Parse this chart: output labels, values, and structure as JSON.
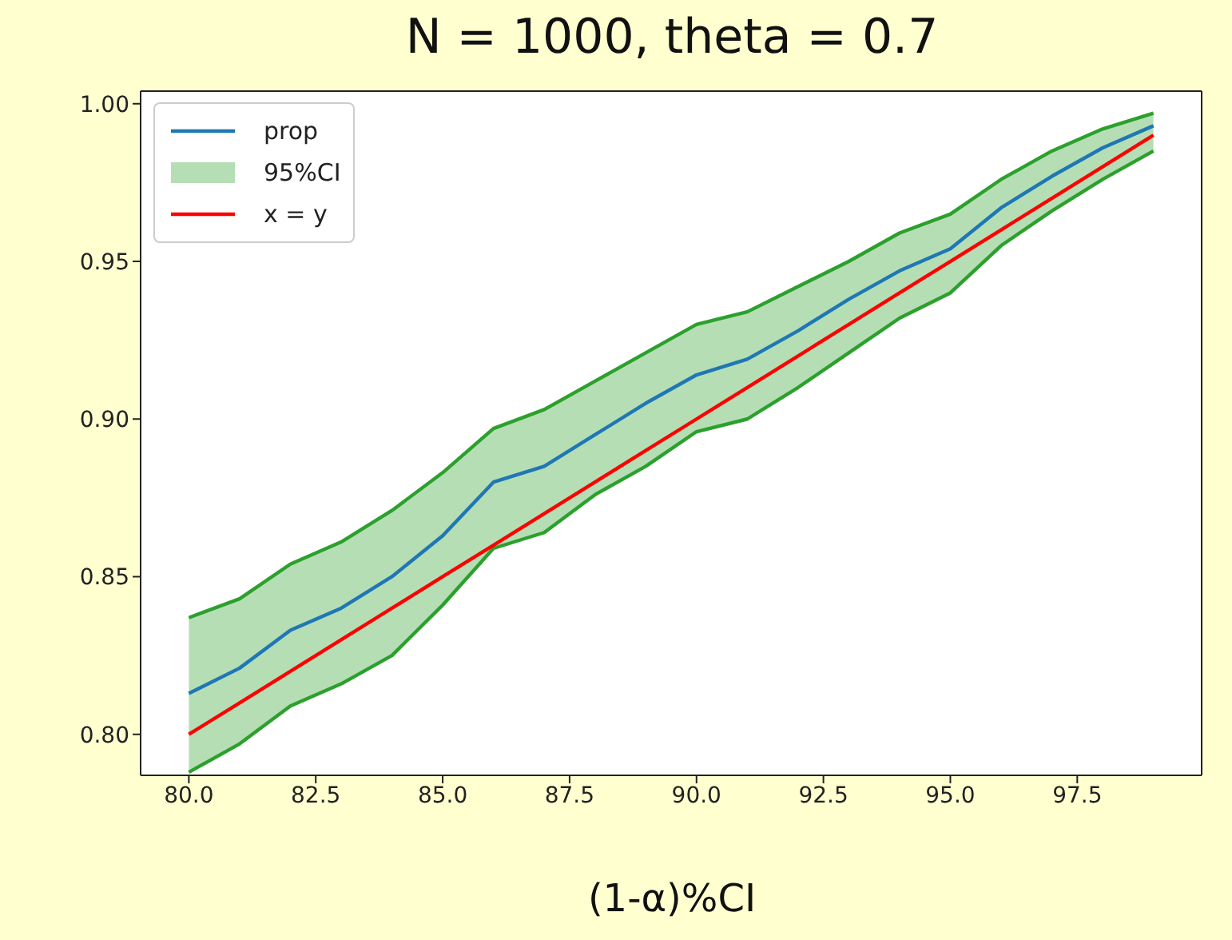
{
  "chart_data": {
    "type": "line",
    "title": "N = 1000, theta = 0.7",
    "xlabel": "(1-α)%CI",
    "x": [
      80,
      81,
      82,
      83,
      84,
      85,
      86,
      87,
      88,
      89,
      90,
      91,
      92,
      93,
      94,
      95,
      96,
      97,
      98,
      99
    ],
    "series": [
      {
        "name": "prop",
        "color": "#1f77b4",
        "values": [
          0.813,
          0.821,
          0.833,
          0.84,
          0.85,
          0.863,
          0.88,
          0.885,
          0.895,
          0.905,
          0.914,
          0.919,
          0.928,
          0.938,
          0.947,
          0.954,
          0.967,
          0.977,
          0.986,
          0.993
        ],
        "lower": [
          0.788,
          0.797,
          0.809,
          0.816,
          0.825,
          0.841,
          0.859,
          0.864,
          0.876,
          0.885,
          0.896,
          0.9,
          0.91,
          0.921,
          0.932,
          0.94,
          0.955,
          0.966,
          0.976,
          0.985
        ],
        "upper": [
          0.837,
          0.843,
          0.854,
          0.861,
          0.871,
          0.883,
          0.897,
          0.903,
          0.912,
          0.921,
          0.93,
          0.934,
          0.942,
          0.95,
          0.959,
          0.965,
          0.976,
          0.985,
          0.992,
          0.997
        ]
      },
      {
        "name": "95%CI",
        "type": "line",
        "color": "#2ca02c",
        "values": [
          0.837,
          0.843,
          0.854,
          0.861,
          0.871,
          0.883,
          0.897,
          0.903,
          0.912,
          0.921,
          0.93,
          0.934,
          0.942,
          0.95,
          0.959,
          0.965,
          0.976,
          0.985,
          0.992,
          0.997
        ]
      },
      {
        "type": "line",
        "color": "#2ca02c",
        "values": [
          0.788,
          0.797,
          0.809,
          0.816,
          0.825,
          0.841,
          0.859,
          0.864,
          0.876,
          0.885,
          0.896,
          0.9,
          0.91,
          0.921,
          0.932,
          0.94,
          0.955,
          0.966,
          0.976,
          0.985
        ]
      },
      {
        "name": "x = y",
        "color": "#ff0000",
        "values": [
          0.8,
          0.81,
          0.82,
          0.83,
          0.84,
          0.85,
          0.86,
          0.87,
          0.88,
          0.89,
          0.9,
          0.91,
          0.92,
          0.93,
          0.94,
          0.95,
          0.96,
          0.97,
          0.98,
          0.99
        ]
      }
    ],
    "xlim": [
      79.05,
      99.95
    ],
    "xticks": [
      {
        "value": 80,
        "label": "80.0"
      },
      {
        "value": 82.5,
        "label": "82.5"
      },
      {
        "value": 85,
        "label": "85.0"
      },
      {
        "value": 87.5,
        "label": "87.5"
      },
      {
        "value": 90,
        "label": "90.0"
      },
      {
        "value": 92.5,
        "label": "92.5"
      },
      {
        "value": 95,
        "label": "95.0"
      },
      {
        "value": 97.5,
        "label": "97.5"
      }
    ],
    "ylim": [
      0.787,
      1.004
    ],
    "yticks": [
      {
        "value": 0.8,
        "label": "0.80"
      },
      {
        "value": 0.85,
        "label": "0.85"
      },
      {
        "value": 0.9,
        "label": "0.90"
      },
      {
        "value": 0.95,
        "label": "0.95"
      },
      {
        "value": 1.0,
        "label": "1.00"
      }
    ],
    "legend": "top left",
    "grid": false,
    "marker": "none",
    "line_style": "solid"
  }
}
